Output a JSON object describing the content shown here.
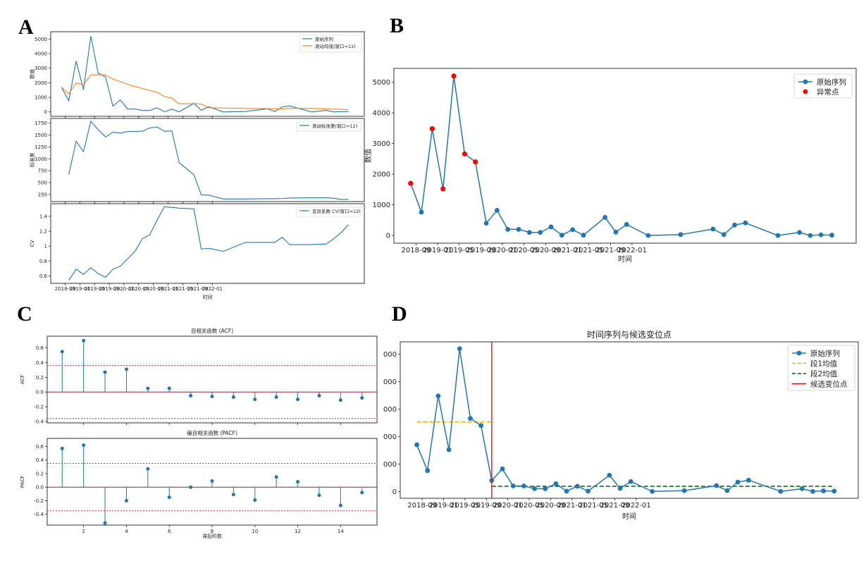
{
  "panels": {
    "a": "A",
    "b": "B",
    "c": "C",
    "d": "D"
  },
  "colors": {
    "blue": "#1f77b4",
    "orange": "#ff7f0e",
    "red": "#ff0000",
    "green": "#006400",
    "dashed_orange": "#ffa500"
  },
  "chart_data": [
    {
      "id": "A1",
      "type": "line",
      "title": "",
      "xlabel": "",
      "ylabel": "数值",
      "ylim": [
        -300,
        5500
      ],
      "yticks": [
        0,
        1000,
        2000,
        3000,
        4000,
        5000
      ],
      "series": [
        {
          "name": "原始序列",
          "values": [
            1700,
            760,
            3480,
            1520,
            5200,
            2660,
            2400,
            400,
            820,
            200,
            200,
            100,
            100,
            280,
            10,
            190,
            10,
            590,
            110,
            360,
            0,
            30,
            210,
            30,
            340,
            410,
            0,
            100,
            0,
            20,
            10
          ]
        },
        {
          "name": "滚动均值(窗口=12)",
          "values": [
            1700,
            1230,
            1980,
            1865,
            2536,
            2557,
            2534,
            2250,
            2080,
            1892,
            1738,
            1602,
            1469,
            1346,
            1054,
            949,
            550,
            565,
            540,
            287,
            268,
            240,
            228,
            222,
            210,
            243,
            242,
            203,
            196,
            176,
            142
          ]
        }
      ]
    },
    {
      "id": "A2",
      "type": "line",
      "title": "",
      "ylabel": "标准差",
      "ylim": [
        100,
        1850
      ],
      "yticks": [
        250,
        500,
        750,
        1000,
        1250,
        1500,
        1750
      ],
      "series": [
        {
          "name": "滚动标准差(窗口=12)",
          "values": [
            null,
            665,
            1370,
            1150,
            1790,
            1610,
            1460,
            1560,
            1540,
            1575,
            1575,
            1580,
            1650,
            1670,
            1580,
            1585,
            920,
            665,
            240,
            235,
            155,
            155,
            160,
            160,
            165,
            175,
            180,
            180,
            170,
            145,
            145
          ]
        }
      ]
    },
    {
      "id": "A3",
      "type": "line",
      "title": "",
      "xlabel": "时间",
      "ylabel": "CV",
      "ylim": [
        0.5,
        1.57
      ],
      "yticks": [
        0.6,
        0.8,
        1.0,
        1.2,
        1.4
      ],
      "xticks": [
        "2018-09",
        "2019-01",
        "2019-05",
        "2019-09",
        "2020-01",
        "2020-05",
        "2020-09",
        "2021-01",
        "2021-05",
        "2021-09",
        "2022-01"
      ],
      "series": [
        {
          "name": "变异系数 CV(窗口=12)",
          "values": [
            null,
            0.54,
            0.69,
            0.62,
            0.71,
            0.63,
            0.58,
            0.69,
            0.73,
            0.83,
            0.93,
            1.1,
            1.15,
            1.35,
            1.53,
            1.52,
            1.51,
            1.5,
            0.96,
            0.97,
            0.93,
            1.05,
            1.05,
            1.05,
            1.12,
            1.02,
            1.02,
            1.03,
            1.1,
            1.18,
            1.29
          ]
        }
      ]
    },
    {
      "id": "B",
      "type": "scatter",
      "title": "",
      "xlabel": "时间",
      "ylabel": "数值",
      "ylim": [
        -250,
        5450
      ],
      "yticks": [
        0,
        1000,
        2000,
        3000,
        4000,
        5000
      ],
      "xticks": [
        "2018-09",
        "2019-01",
        "2019-05",
        "2019-09",
        "2020-01",
        "2020-05",
        "2020-09",
        "2021-01",
        "2021-05",
        "2021-09",
        "2022-01"
      ],
      "series": [
        {
          "name": "原始序列",
          "values": [
            1700,
            760,
            3480,
            1520,
            5200,
            2660,
            2400,
            400,
            820,
            200,
            200,
            100,
            100,
            280,
            10,
            190,
            10,
            590,
            110,
            360,
            0,
            30,
            210,
            30,
            340,
            410,
            0,
            100,
            0,
            20,
            10
          ]
        },
        {
          "name": "异常点",
          "indices": [
            0,
            2,
            3,
            4,
            5,
            6
          ]
        }
      ],
      "legend": "top-right"
    },
    {
      "id": "C1",
      "type": "bar",
      "title": "自相关函数 (ACF)",
      "xlabel": "",
      "ylabel": "ACF",
      "ylim": [
        -0.42,
        0.76
      ],
      "yticks": [
        -0.4,
        -0.2,
        0.0,
        0.2,
        0.4,
        0.6
      ],
      "lags": [
        1,
        2,
        3,
        4,
        5,
        6,
        7,
        8,
        9,
        10,
        11,
        12,
        13,
        14,
        15
      ],
      "values": [
        0.55,
        0.7,
        0.27,
        0.31,
        0.05,
        0.05,
        -0.05,
        -0.06,
        -0.07,
        -0.1,
        -0.07,
        -0.1,
        -0.05,
        -0.11,
        -0.08
      ],
      "conf": 0.36
    },
    {
      "id": "C2",
      "type": "bar",
      "title": "偏自相关函数 (PACF)",
      "xlabel": "滞后阶数",
      "ylabel": "PACF",
      "ylim": [
        -0.56,
        0.72
      ],
      "yticks": [
        -0.4,
        -0.2,
        0.0,
        0.2,
        0.4,
        0.6
      ],
      "xticks": [
        2,
        4,
        6,
        8,
        10,
        12,
        14
      ],
      "lags": [
        1,
        2,
        3,
        4,
        5,
        6,
        7,
        8,
        9,
        10,
        11,
        12,
        13,
        14,
        15
      ],
      "values": [
        0.57,
        0.62,
        -0.53,
        -0.2,
        0.27,
        -0.15,
        0.0,
        0.09,
        -0.11,
        -0.19,
        0.15,
        0.08,
        -0.12,
        -0.27,
        -0.08
      ],
      "conf": 0.35
    },
    {
      "id": "D",
      "type": "line",
      "title": "时间序列与候选变位点",
      "xlabel": "时间",
      "ylabel": "",
      "ylim": [
        -250,
        5450
      ],
      "yticks": [
        0,
        1000,
        2000,
        3000,
        4000,
        5000
      ],
      "ytick_labels": [
        "0",
        "000",
        "000",
        "000",
        "000",
        "000"
      ],
      "xticks": [
        "2018-09",
        "2019-01",
        "2019-05",
        "2019-09",
        "2020-01",
        "2020-05",
        "2020-09",
        "2021-01",
        "2021-05",
        "2021-09",
        "2022-01"
      ],
      "series": [
        {
          "name": "原始序列",
          "values": [
            1700,
            760,
            3480,
            1520,
            5200,
            2660,
            2400,
            400,
            820,
            200,
            200,
            100,
            100,
            280,
            10,
            190,
            10,
            590,
            110,
            360,
            0,
            30,
            210,
            30,
            340,
            410,
            0,
            100,
            0,
            20,
            10
          ]
        },
        {
          "name": "段1均值",
          "value": 2530
        },
        {
          "name": "段2均值",
          "value": 185
        },
        {
          "name": "候选变位点",
          "index": 7
        }
      ],
      "legend": "top-right"
    }
  ],
  "dates_month_offset": [
    0,
    2,
    4,
    6,
    8,
    10,
    12,
    14,
    16,
    18,
    20,
    22,
    24,
    26,
    28,
    30,
    32,
    36,
    38,
    40,
    44,
    50,
    56,
    58,
    60,
    62,
    68,
    72,
    74,
    76,
    78
  ]
}
